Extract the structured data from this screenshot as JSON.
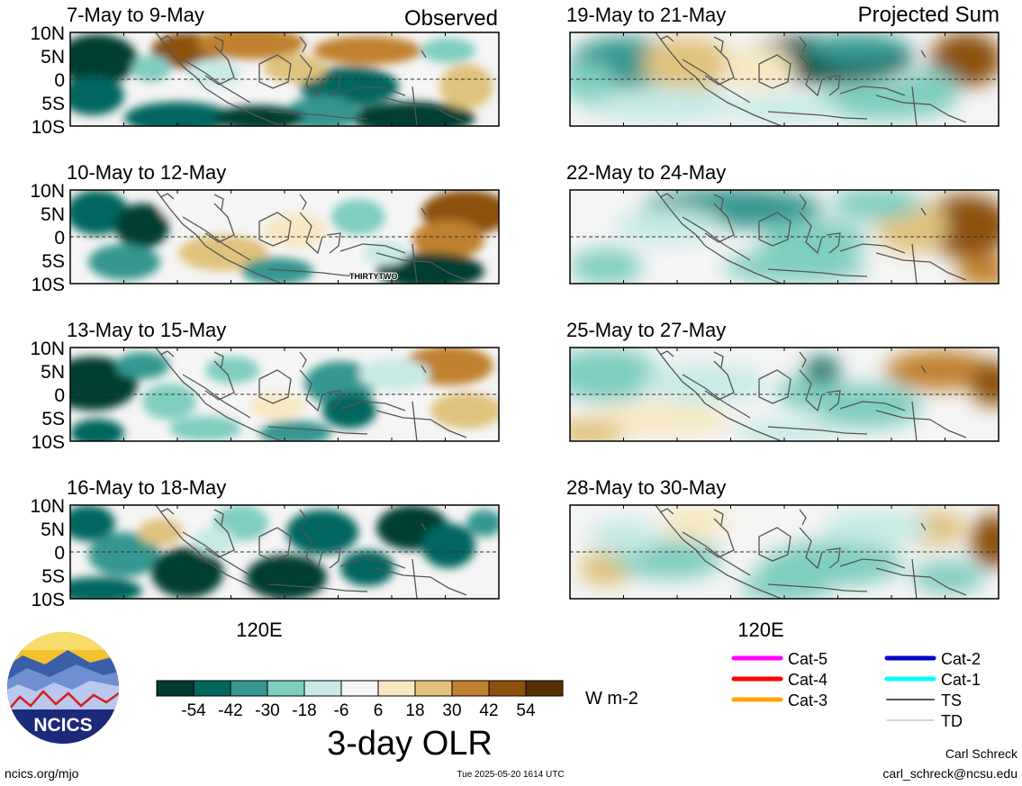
{
  "header": {
    "left": "Observed",
    "right": "Projected Sum"
  },
  "panels": [
    {
      "id": "obs-1",
      "title": "7-May to 9-May"
    },
    {
      "id": "obs-2",
      "title": "10-May to 12-May",
      "annotation": "THIRTYTWO"
    },
    {
      "id": "obs-3",
      "title": "13-May to 15-May"
    },
    {
      "id": "obs-4",
      "title": "16-May to 18-May"
    },
    {
      "id": "proj-1",
      "title": "19-May to 21-May"
    },
    {
      "id": "proj-2",
      "title": "22-May to 24-May"
    },
    {
      "id": "proj-3",
      "title": "25-May to 27-May"
    },
    {
      "id": "proj-4",
      "title": "28-May to 30-May"
    }
  ],
  "lat_labels": [
    "10N",
    "5N",
    "0",
    "5S",
    "10S"
  ],
  "lon_label": "120E",
  "colorbar": {
    "labels": [
      "-54",
      "-42",
      "-30",
      "-18",
      "-6",
      "6",
      "18",
      "30",
      "42",
      "54"
    ],
    "colors": [
      "#003c30",
      "#01665e",
      "#35978f",
      "#80cdc1",
      "#c7eae5",
      "#f5f5f5",
      "#f6e8c3",
      "#dfc27d",
      "#bf812d",
      "#8c510a",
      "#543005"
    ],
    "unit": "W m-2",
    "title": "3-day OLR"
  },
  "legend": {
    "items": [
      {
        "label": "Cat-5",
        "color": "#ff00ff"
      },
      {
        "label": "Cat-4",
        "color": "#ff0000"
      },
      {
        "label": "Cat-3",
        "color": "#ffa500"
      },
      {
        "label": "Cat-2",
        "color": "#0000cc"
      },
      {
        "label": "Cat-1",
        "color": "#00ffff"
      },
      {
        "label": "TS",
        "color": "#555555"
      },
      {
        "label": "TD",
        "color": "#aaaaaa"
      }
    ]
  },
  "logo": {
    "text": "NCICS"
  },
  "footer": {
    "url": "ncics.org/mjo",
    "timestamp": "Tue 2025-05-20 1614 UTC",
    "author": "Carl Schreck",
    "email": "carl_schreck@ncsu.edu"
  }
}
